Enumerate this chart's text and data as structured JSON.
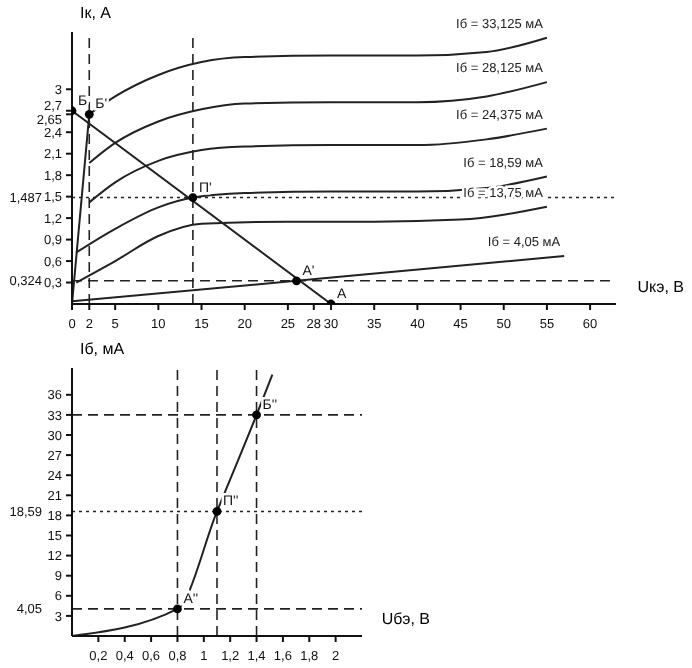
{
  "chart_data": [
    {
      "type": "line",
      "xlabel": "Uкэ, В",
      "ylabel": "Iк, А",
      "xlim": [
        0,
        63
      ],
      "ylim": [
        0,
        3.8
      ],
      "xticks": [
        0,
        2,
        5,
        10,
        15,
        20,
        25,
        28,
        30,
        35,
        40,
        45,
        50,
        55,
        60
      ],
      "yticks": [
        {
          "value": 0.3,
          "label": "0,3"
        },
        {
          "value": 0.6,
          "label": "0,6"
        },
        {
          "value": 0.9,
          "label": "0,9"
        },
        {
          "value": 1.2,
          "label": "1,2"
        },
        {
          "value": 1.5,
          "label": "1,5"
        },
        {
          "value": 1.8,
          "label": "1,8"
        },
        {
          "value": 2.1,
          "label": "2,1"
        },
        {
          "value": 2.4,
          "label": "2,4"
        },
        {
          "value": 2.65,
          "label": "2,65"
        },
        {
          "value": 2.7,
          "label": "2,7"
        },
        3
      ],
      "series": [
        {
          "name": "Iб = 33,125 мА",
          "color": "#222222",
          "x": [
            2,
            5,
            10,
            15,
            20,
            30,
            40,
            48,
            55
          ],
          "values": [
            2.65,
            2.9,
            3.2,
            3.38,
            3.45,
            3.47,
            3.47,
            3.52,
            3.72
          ]
        },
        {
          "name": "Iб = 28,125 мА",
          "color": "#222222",
          "x": [
            2,
            5,
            10,
            15,
            20,
            30,
            40,
            48,
            55
          ],
          "values": [
            1.97,
            2.25,
            2.55,
            2.72,
            2.8,
            2.82,
            2.82,
            2.9,
            3.1
          ]
        },
        {
          "name": "Iб = 24,375 мА",
          "color": "#222222",
          "x": [
            2,
            5,
            10,
            15,
            20,
            30,
            40,
            48,
            55
          ],
          "values": [
            1.42,
            1.7,
            2.0,
            2.15,
            2.2,
            2.22,
            2.22,
            2.3,
            2.45
          ]
        },
        {
          "name": "Iб = 18,59 мА",
          "color": "#222222",
          "x": [
            0.5,
            5,
            10,
            14,
            20,
            30,
            40,
            48,
            55
          ],
          "values": [
            0.72,
            1.05,
            1.35,
            1.487,
            1.55,
            1.57,
            1.57,
            1.62,
            1.78
          ]
        },
        {
          "name": "Iб = 13,75 мА",
          "color": "#222222",
          "x": [
            0.5,
            5,
            10,
            15,
            25,
            35,
            45,
            55
          ],
          "values": [
            0.3,
            0.6,
            0.95,
            1.12,
            1.15,
            1.15,
            1.18,
            1.36
          ]
        },
        {
          "name": "Iб = 4,05 мА",
          "color": "#222222",
          "x": [
            0,
            26,
            57
          ],
          "values": [
            0.04,
            0.324,
            0.67
          ]
        },
        {
          "color": "#222222",
          "x": [
            0,
            2
          ],
          "values": [
            0,
            2.65
          ]
        },
        {
          "color": "#222222",
          "x": [
            0,
            30
          ],
          "values": [
            2.7,
            0
          ]
        },
        {
          "type": "scatter",
          "marker": "circle",
          "color": "#000000",
          "x": [
            0,
            2,
            14,
            26,
            30
          ],
          "values": [
            2.7,
            2.65,
            1.487,
            0.324,
            0
          ]
        }
      ],
      "ref_lines": [
        {
          "axis": "y",
          "value": 0.324,
          "label": "0,324",
          "line_style": "dashed"
        },
        {
          "axis": "y",
          "value": 1.487,
          "label": "1,487",
          "line_style": "dotted"
        },
        {
          "axis": "x",
          "value": 2,
          "line_style": "dashed"
        },
        {
          "axis": "x",
          "value": 14,
          "line_style": "dashed"
        }
      ],
      "annotations": [
        {
          "text": "Б",
          "x": 0,
          "y": 2.7
        },
        {
          "text": "Б'",
          "x": 2,
          "y": 2.65
        },
        {
          "text": "П'",
          "x": 14,
          "y": 1.487
        },
        {
          "text": "А'",
          "x": 26,
          "y": 0.324
        },
        {
          "text": "А",
          "x": 30,
          "y": 0
        }
      ]
    },
    {
      "type": "line",
      "xlabel": "Uбэ, В",
      "ylabel": "Iб, мА",
      "xlim": [
        0,
        2.2
      ],
      "ylim": [
        0,
        40
      ],
      "xticks": [
        {
          "value": 0.2,
          "label": "0,2"
        },
        {
          "value": 0.4,
          "label": "0,4"
        },
        {
          "value": 0.6,
          "label": "0,6"
        },
        {
          "value": 0.8,
          "label": "0,8"
        },
        1,
        {
          "value": 1.2,
          "label": "1,2"
        },
        {
          "value": 1.4,
          "label": "1,4"
        },
        {
          "value": 1.6,
          "label": "1,6"
        },
        {
          "value": 1.8,
          "label": "1,8"
        },
        2
      ],
      "yticks": [
        3,
        6,
        9,
        12,
        15,
        18,
        21,
        24,
        27,
        30,
        33,
        36
      ],
      "series": [
        {
          "color": "#222222",
          "x": [
            0,
            0.8,
            1.1,
            1.4,
            1.52
          ],
          "values": [
            0,
            4.05,
            18.59,
            33,
            39
          ]
        },
        {
          "type": "scatter",
          "marker": "circle",
          "color": "#000000",
          "x": [
            0.8,
            1.1,
            1.4
          ],
          "values": [
            4.05,
            18.59,
            33
          ]
        }
      ],
      "ref_lines": [
        {
          "axis": "y",
          "value": 4.05,
          "label": "4,05",
          "line_style": "dashed"
        },
        {
          "axis": "y",
          "value": 18.59,
          "label": "18,59",
          "line_style": "dotted"
        },
        {
          "axis": "y",
          "value": 33,
          "line_style": "dashed"
        },
        {
          "axis": "x",
          "value": 0.8,
          "line_style": "dashed"
        },
        {
          "axis": "x",
          "value": 1.1,
          "line_style": "dashed"
        },
        {
          "axis": "x",
          "value": 1.4,
          "line_style": "dashed"
        }
      ],
      "annotations": [
        {
          "text": "А''",
          "x": 0.8,
          "y": 4.05
        },
        {
          "text": "П''",
          "x": 1.1,
          "y": 18.59
        },
        {
          "text": "Б''",
          "x": 1.4,
          "y": 33
        }
      ]
    }
  ]
}
